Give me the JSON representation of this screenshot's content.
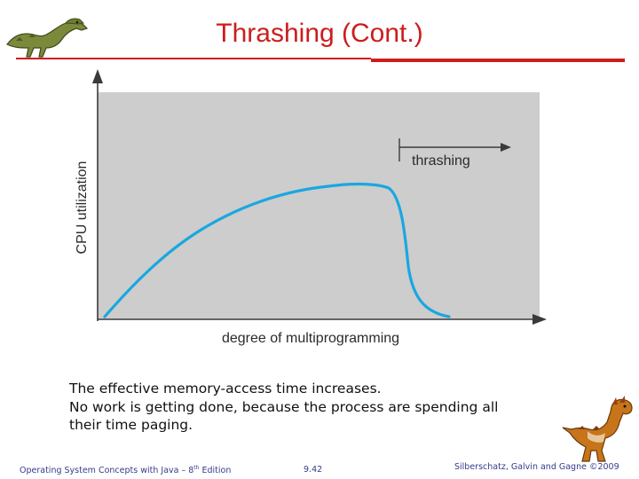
{
  "slide": {
    "title": "Thrashing (Cont.)",
    "accent_color": "#cc1d1d",
    "text_color": "#111111",
    "footer_color": "#333c8a"
  },
  "figure": {
    "ylabel": "CPU utilization",
    "xlabel": "degree of multiprogramming",
    "annotation": "thrashing",
    "curve_color": "#1aa7e0",
    "plot_background": "#cdcdcd",
    "shape": "utilization rises with degree of multiprogramming, flattens, then drops sharply into the thrashing region"
  },
  "body": {
    "lines": [
      "The effective memory-access time increases.",
      "No work is getting done, because the process are spending all",
      "their time paging."
    ]
  },
  "footer": {
    "left_prefix": "Operating System Concepts with Java – 8",
    "left_sup": "th",
    "left_suffix": " Edition",
    "page": "9.42",
    "right": "Silberschatz, Galvin and Gagne ©2009"
  },
  "icons": {
    "top_left": "dinosaur-logo-icon",
    "bottom_right": "dinosaur-mascot-icon"
  }
}
